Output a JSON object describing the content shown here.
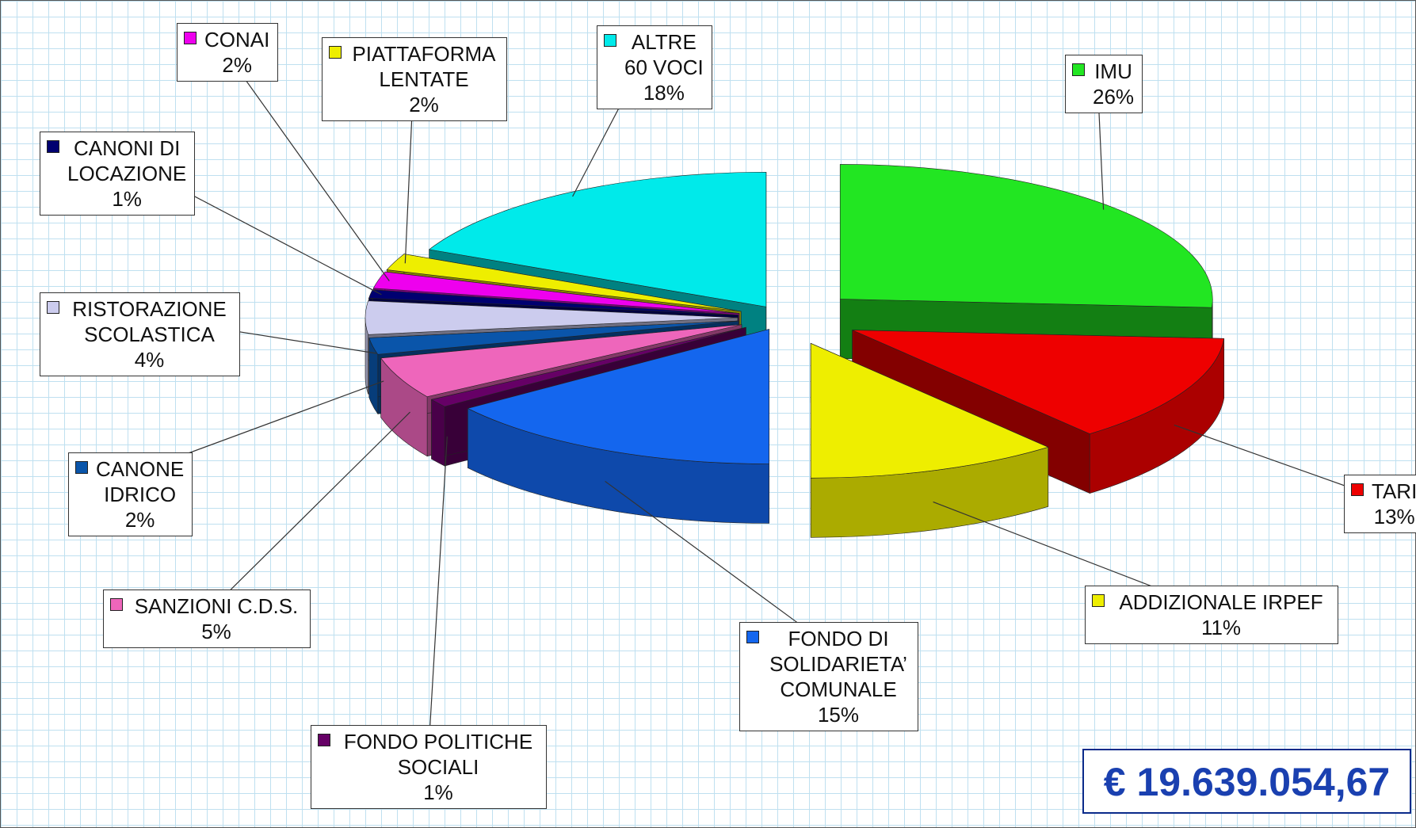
{
  "chart_data": {
    "type": "pie",
    "categories": [
      "IMU",
      "TARI",
      "ADDIZIONALE IRPEF",
      "FONDO DI\nSOLIDARIETA’\nCOMUNALE",
      "FONDO POLITICHE\nSOCIALI",
      "SANZIONI C.D.S.",
      "CANONE\nIDRICO",
      "RISTORAZIONE\nSCOLASTICA",
      "CANONI DI\nLOCAZIONE",
      "CONAI",
      "PIATTAFORMA\nLENTATE",
      "ALTRE\n60 VOCI"
    ],
    "values": [
      26,
      13,
      11,
      15,
      1,
      5,
      2,
      4,
      1,
      2,
      2,
      18
    ],
    "value_labels": [
      "26%",
      "13%",
      "11%",
      "15%",
      "1%",
      "5%",
      "2%",
      "4%",
      "1%",
      "2%",
      "2%",
      "18%"
    ],
    "colors": [
      "#22e622",
      "#ee0000",
      "#eeee00",
      "#1466ee",
      "#660066",
      "#ee66bb",
      "#0a55aa",
      "#ccccee",
      "#000070",
      "#ee00ee",
      "#eeee00",
      "#00eaea"
    ],
    "annotation": "€ 19.639.054,67"
  }
}
